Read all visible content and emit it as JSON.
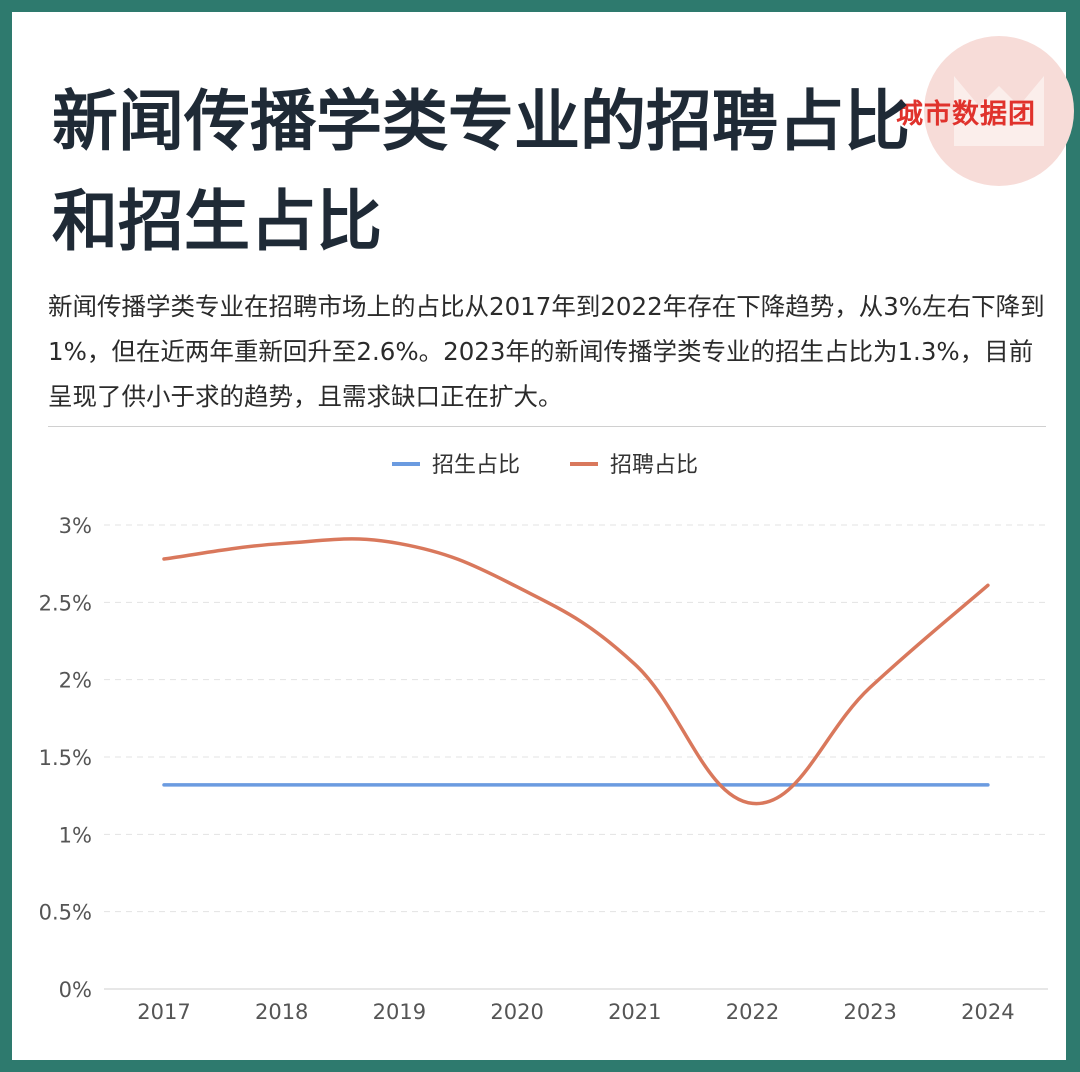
{
  "brand": "城市数据团",
  "title": "新闻传播学类专业的招聘占比和招生占比",
  "description": "新闻传播学类专业在招聘市场上的占比从2017年到2022年存在下降趋势，从3%左右下降到1%，但在近两年重新回升至2.6%。2023年的新闻传播学类专业的招生占比为1.3%，目前呈现了供小于求的趋势，且需求缺口正在扩大。",
  "chart_data": {
    "type": "line",
    "categories": [
      "2017",
      "2018",
      "2019",
      "2020",
      "2021",
      "2022",
      "2023",
      "2024"
    ],
    "series": [
      {
        "name": "招生占比",
        "color": "#6b9be0",
        "values": [
          1.32,
          1.32,
          1.32,
          1.32,
          1.32,
          1.32,
          1.32,
          1.32
        ]
      },
      {
        "name": "招聘占比",
        "color": "#d9785c",
        "values": [
          2.78,
          2.88,
          2.88,
          2.6,
          2.1,
          1.2,
          1.95,
          2.61
        ]
      }
    ],
    "yticks": [
      "0%",
      "0.5%",
      "1%",
      "1.5%",
      "2%",
      "2.5%",
      "3%"
    ],
    "ylim": [
      0,
      3
    ],
    "legend_position": "top-center",
    "grid": true
  }
}
